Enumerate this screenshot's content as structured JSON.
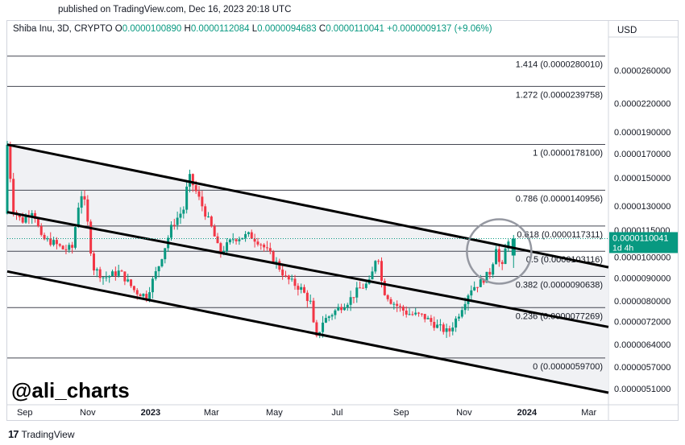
{
  "publish_line": "published on TradingView.com, Dec 16, 2023 20:18 UTC",
  "header": {
    "symbol": "Shiba Inu, 3D, CRYPTO",
    "o_label": "O",
    "o_value": "0.0000100890",
    "h_label": "H",
    "h_value": "0.0000112084",
    "l_label": "L",
    "l_value": "0.0000094683",
    "c_label": "C",
    "c_value": "0.0000110041",
    "change": "+0.0000009137 (+9.06%)"
  },
  "currency": "USD",
  "watermark": "@ali_charts",
  "brand": "TradingView",
  "colors": {
    "up": "#089981",
    "down": "#f23645",
    "channel_fill": "#f0f1f4",
    "fib": "#434651"
  },
  "chart_data": {
    "type": "candlestick",
    "symbol": "SHIB/USD",
    "timeframe": "3D",
    "y_scale": "log",
    "ylim": [
      4.7e-06,
      3.1e-05
    ],
    "y_ticks": [
      {
        "value": 2.6e-05,
        "label": "0.0000260000"
      },
      {
        "value": 2.2e-05,
        "label": "0.0000220000"
      },
      {
        "value": 1.9e-05,
        "label": "0.0000190000"
      },
      {
        "value": 1.7e-05,
        "label": "0.0000170000"
      },
      {
        "value": 1.5e-05,
        "label": "0.0000150000"
      },
      {
        "value": 1.3e-05,
        "label": "0.0000130000"
      },
      {
        "value": 1.15e-05,
        "label": "0.0000115000"
      },
      {
        "value": 1e-05,
        "label": "0.0000100000"
      },
      {
        "value": 9e-06,
        "label": "0.0000090000"
      },
      {
        "value": 8e-06,
        "label": "0.0000080000"
      },
      {
        "value": 7.2e-06,
        "label": "0.0000072000"
      },
      {
        "value": 6.4e-06,
        "label": "0.0000064000"
      },
      {
        "value": 5.7e-06,
        "label": "0.0000057000"
      },
      {
        "value": 5.1e-06,
        "label": "0.0000051000"
      }
    ],
    "x_range": [
      "2022-08-15",
      "2024-03-20"
    ],
    "x_ticks": [
      {
        "date": "2022-09-01",
        "label": "Sep",
        "bold": false
      },
      {
        "date": "2022-11-01",
        "label": "Nov",
        "bold": false
      },
      {
        "date": "2023-01-01",
        "label": "2023",
        "bold": true
      },
      {
        "date": "2023-03-01",
        "label": "Mar",
        "bold": false
      },
      {
        "date": "2023-05-01",
        "label": "May",
        "bold": false
      },
      {
        "date": "2023-07-01",
        "label": "Jul",
        "bold": false
      },
      {
        "date": "2023-09-01",
        "label": "Sep",
        "bold": false
      },
      {
        "date": "2023-11-01",
        "label": "Nov",
        "bold": false
      },
      {
        "date": "2024-01-01",
        "label": "2024",
        "bold": true
      },
      {
        "date": "2024-03-01",
        "label": "Mar",
        "bold": false
      }
    ],
    "fib_levels": [
      {
        "ratio": "1.414",
        "value": 2.8001e-05,
        "label": "1.414 (0.0000280010)"
      },
      {
        "ratio": "1.272",
        "value": 2.39758e-05,
        "label": "1.272 (0.0000239758)"
      },
      {
        "ratio": "1",
        "value": 1.781e-05,
        "label": "1 (0.0000178100)"
      },
      {
        "ratio": "0.786",
        "value": 1.40956e-05,
        "label": "0.786 (0.0000140956)"
      },
      {
        "ratio": "0.618",
        "value": 1.17311e-05,
        "label": "0.618 (0.0000117311)"
      },
      {
        "ratio": "0.5",
        "value": 1.03116e-05,
        "label": "0.5 (0.0000103116)"
      },
      {
        "ratio": "0.382",
        "value": 9.0638e-06,
        "label": "0.382 (0.0000090638)"
      },
      {
        "ratio": "0.236",
        "value": 7.7269e-06,
        "label": "0.236 (0.0000077269)"
      },
      {
        "ratio": "0",
        "value": 5.97e-06,
        "label": "0 (0.0000059700)"
      }
    ],
    "channel_lines": [
      {
        "name": "upper",
        "start": [
          "2022-08-15",
          1.78e-05
        ],
        "end": [
          "2024-03-20",
          9.5e-06
        ]
      },
      {
        "name": "middle",
        "start": [
          "2022-08-15",
          1.26e-05
        ],
        "end": [
          "2024-03-20",
          7e-06
        ]
      },
      {
        "name": "lower",
        "start": [
          "2022-08-15",
          9.3e-06
        ],
        "end": [
          "2024-03-20",
          5e-06
        ]
      }
    ],
    "price_line": {
      "value": 1.10041e-05,
      "label": "0.0000110041",
      "countdown": "1d 4h"
    },
    "highlight_circle": {
      "date": "2023-12-05",
      "value": 1.03e-05
    },
    "price_path": [
      [
        "2022-08-15",
        1.25e-05
      ],
      [
        "2022-08-18",
        1.78e-05
      ],
      [
        "2022-08-24",
        1.28e-05
      ],
      [
        "2022-09-01",
        1.2e-05
      ],
      [
        "2022-09-12",
        1.28e-05
      ],
      [
        "2022-09-20",
        1.1e-05
      ],
      [
        "2022-10-01",
        1.08e-05
      ],
      [
        "2022-10-12",
        1.04e-05
      ],
      [
        "2022-10-20",
        1.05e-05
      ],
      [
        "2022-10-28",
        1.4e-05
      ],
      [
        "2022-11-02",
        1.3e-05
      ],
      [
        "2022-11-09",
        9.5e-06
      ],
      [
        "2022-11-20",
        9e-06
      ],
      [
        "2022-12-05",
        9.3e-06
      ],
      [
        "2022-12-20",
        8.4e-06
      ],
      [
        "2022-12-31",
        8.2e-06
      ],
      [
        "2023-01-12",
        9.6e-06
      ],
      [
        "2023-01-25",
        1.18e-05
      ],
      [
        "2023-02-05",
        1.28e-05
      ],
      [
        "2023-02-10",
        1.52e-05
      ],
      [
        "2023-02-20",
        1.35e-05
      ],
      [
        "2023-03-05",
        1.15e-05
      ],
      [
        "2023-03-12",
        1.02e-05
      ],
      [
        "2023-03-25",
        1.1e-05
      ],
      [
        "2023-04-10",
        1.12e-05
      ],
      [
        "2023-04-20",
        1.08e-05
      ],
      [
        "2023-05-05",
        9.8e-06
      ],
      [
        "2023-05-15",
        9e-06
      ],
      [
        "2023-05-30",
        8.5e-06
      ],
      [
        "2023-06-10",
        7.8e-06
      ],
      [
        "2023-06-12",
        6.4e-06
      ],
      [
        "2023-06-20",
        7.2e-06
      ],
      [
        "2023-07-05",
        7.7e-06
      ],
      [
        "2023-07-15",
        8e-06
      ],
      [
        "2023-07-25",
        8.5e-06
      ],
      [
        "2023-08-05",
        8.8e-06
      ],
      [
        "2023-08-12",
        1.04e-05
      ],
      [
        "2023-08-17",
        8.5e-06
      ],
      [
        "2023-08-25",
        8e-06
      ],
      [
        "2023-09-10",
        7.5e-06
      ],
      [
        "2023-09-25",
        7.4e-06
      ],
      [
        "2023-10-10",
        7e-06
      ],
      [
        "2023-10-20",
        6.8e-06
      ],
      [
        "2023-10-30",
        7.5e-06
      ],
      [
        "2023-11-10",
        8.5e-06
      ],
      [
        "2023-11-20",
        8.8e-06
      ],
      [
        "2023-11-30",
        9.3e-06
      ],
      [
        "2023-12-05",
        1.06e-05
      ],
      [
        "2023-12-10",
        9.2e-06
      ],
      [
        "2023-12-13",
        1.01e-05
      ],
      [
        "2023-12-16",
        1.1e-05
      ]
    ]
  }
}
